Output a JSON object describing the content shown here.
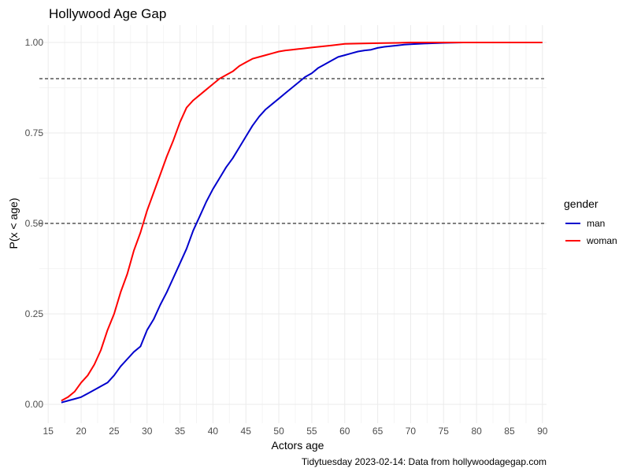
{
  "chart_data": {
    "type": "line",
    "title": "Hollywood Age Gap",
    "xlabel": "Actors age",
    "ylabel": "P(x < age)",
    "caption": "Tidytuesday 2023-02-14: Data from hollywoodagegap.com",
    "xlim": [
      15,
      90
    ],
    "ylim": [
      0,
      1
    ],
    "xticks": [
      15,
      20,
      25,
      30,
      35,
      40,
      45,
      50,
      55,
      60,
      65,
      70,
      75,
      80,
      85,
      90
    ],
    "yticks": [
      0,
      0.25,
      0.5,
      0.75,
      1.0
    ],
    "ytick_labels": [
      "0.00",
      "0.25",
      "0.50",
      "0.75",
      "1.00"
    ],
    "reference_lines": [
      0.5,
      0.9
    ],
    "legend": {
      "title": "gender",
      "position": "right"
    },
    "grid": true,
    "series": [
      {
        "name": "man",
        "color": "#0000CD",
        "x": [
          17,
          18,
          19,
          20,
          21,
          22,
          23,
          24,
          25,
          26,
          27,
          28,
          29,
          30,
          31,
          32,
          33,
          34,
          35,
          36,
          37,
          38,
          39,
          40,
          41,
          42,
          43,
          44,
          45,
          46,
          47,
          48,
          49,
          50,
          51,
          52,
          53,
          54,
          55,
          56,
          57,
          58,
          59,
          60,
          61,
          62,
          63,
          64,
          65,
          66,
          67,
          68,
          69,
          70,
          72,
          75,
          78,
          81
        ],
        "y": [
          0.005,
          0.01,
          0.015,
          0.02,
          0.03,
          0.04,
          0.05,
          0.06,
          0.08,
          0.105,
          0.125,
          0.145,
          0.16,
          0.205,
          0.235,
          0.275,
          0.31,
          0.35,
          0.39,
          0.43,
          0.48,
          0.52,
          0.56,
          0.595,
          0.625,
          0.655,
          0.68,
          0.71,
          0.74,
          0.77,
          0.795,
          0.815,
          0.83,
          0.845,
          0.86,
          0.875,
          0.89,
          0.905,
          0.915,
          0.93,
          0.94,
          0.95,
          0.96,
          0.965,
          0.97,
          0.975,
          0.978,
          0.98,
          0.985,
          0.988,
          0.99,
          0.992,
          0.994,
          0.995,
          0.997,
          0.999,
          1.0,
          1.0
        ]
      },
      {
        "name": "woman",
        "color": "#FF0000",
        "x": [
          17,
          18,
          19,
          20,
          21,
          22,
          23,
          24,
          25,
          26,
          27,
          28,
          29,
          30,
          31,
          32,
          33,
          34,
          35,
          36,
          37,
          38,
          39,
          40,
          41,
          42,
          43,
          44,
          45,
          46,
          47,
          48,
          49,
          50,
          51,
          52,
          53,
          54,
          55,
          56,
          57,
          58,
          59,
          60,
          62,
          65,
          68,
          70,
          75,
          80,
          85,
          90
        ],
        "y": [
          0.01,
          0.02,
          0.035,
          0.06,
          0.08,
          0.11,
          0.15,
          0.205,
          0.25,
          0.31,
          0.36,
          0.425,
          0.475,
          0.535,
          0.585,
          0.635,
          0.685,
          0.73,
          0.78,
          0.82,
          0.84,
          0.855,
          0.87,
          0.885,
          0.9,
          0.91,
          0.92,
          0.935,
          0.945,
          0.955,
          0.96,
          0.965,
          0.97,
          0.975,
          0.978,
          0.98,
          0.982,
          0.984,
          0.986,
          0.988,
          0.99,
          0.992,
          0.994,
          0.996,
          0.997,
          0.998,
          0.999,
          1.0,
          1.0,
          1.0,
          1.0,
          1.0
        ]
      }
    ]
  }
}
